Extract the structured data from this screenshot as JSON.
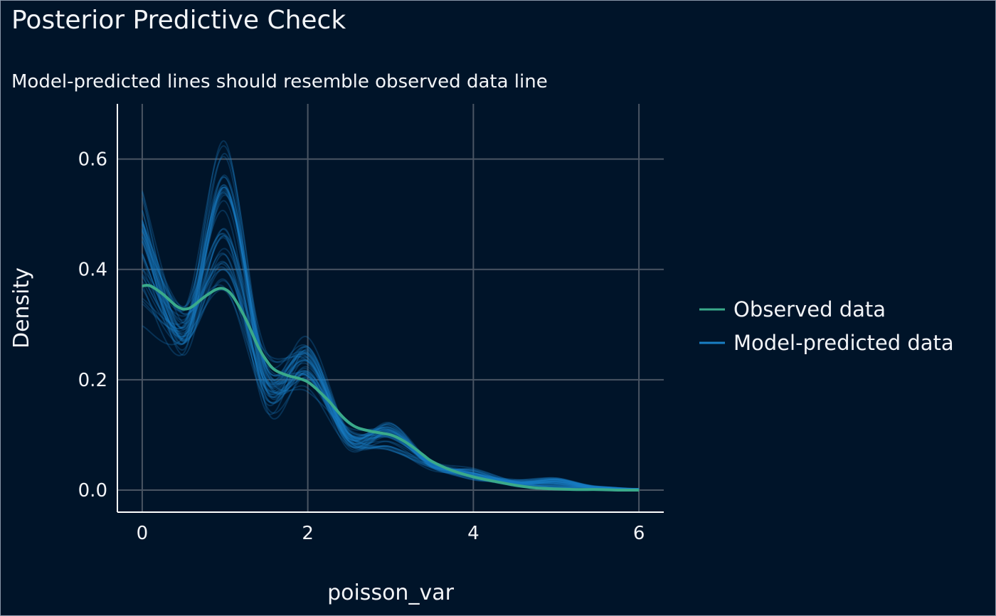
{
  "chart_data": {
    "type": "line",
    "title": "Posterior Predictive Check",
    "subtitle": "Model-predicted lines should resemble observed data line",
    "xlabel": "poisson_var",
    "ylabel": "Density",
    "xlim": [
      -0.3,
      6.3
    ],
    "ylim": [
      -0.04,
      0.7
    ],
    "x_ticks": [
      0,
      2,
      4,
      6
    ],
    "x_tick_labels": [
      "0",
      "2",
      "4",
      "6"
    ],
    "y_ticks": [
      0.0,
      0.2,
      0.4,
      0.6
    ],
    "y_tick_labels": [
      "0.0",
      "0.2",
      "0.4",
      "0.6"
    ],
    "grid": true,
    "legend_position": "right",
    "colors": {
      "background": "#001429",
      "grid": "#4a5563",
      "axis": "#ffffff",
      "observed": "#3aaa8a",
      "predicted": "#1a7fc4"
    },
    "observed": {
      "name": "Observed data",
      "x": [
        0,
        0.1,
        0.25,
        0.4,
        0.5,
        0.6,
        0.75,
        0.9,
        1.0,
        1.1,
        1.25,
        1.4,
        1.5,
        1.6,
        1.75,
        1.9,
        2.0,
        2.1,
        2.25,
        2.4,
        2.5,
        2.6,
        2.75,
        2.9,
        3.0,
        3.1,
        3.25,
        3.4,
        3.5,
        3.75,
        4.0,
        4.25,
        4.5,
        4.75,
        5.0,
        5.25,
        5.5,
        5.75,
        6.0
      ],
      "y": [
        0.37,
        0.37,
        0.355,
        0.335,
        0.328,
        0.332,
        0.35,
        0.364,
        0.364,
        0.35,
        0.31,
        0.26,
        0.235,
        0.218,
        0.208,
        0.202,
        0.196,
        0.184,
        0.162,
        0.136,
        0.122,
        0.113,
        0.107,
        0.103,
        0.1,
        0.094,
        0.08,
        0.063,
        0.052,
        0.035,
        0.024,
        0.016,
        0.009,
        0.004,
        0.002,
        0.001,
        0.001,
        0.0,
        0.0
      ]
    },
    "predicted": {
      "name": "Model-predicted data",
      "draws": 40,
      "x": [
        0,
        0.5,
        1.0,
        1.5,
        2.0,
        2.5,
        3.0,
        3.5,
        4.0,
        4.5,
        5.0,
        5.5,
        6.0
      ],
      "y_envelope_low": [
        0.29,
        0.235,
        0.31,
        0.13,
        0.17,
        0.07,
        0.06,
        0.035,
        0.015,
        0.006,
        0.001,
        0.0,
        0.0
      ],
      "y_envelope_high": [
        0.57,
        0.345,
        0.67,
        0.27,
        0.285,
        0.12,
        0.13,
        0.055,
        0.04,
        0.02,
        0.025,
        0.008,
        0.003
      ]
    }
  }
}
